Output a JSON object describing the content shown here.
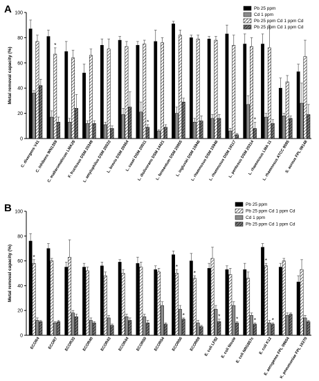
{
  "chart_data": [
    {
      "panel_label": "A",
      "type": "bar",
      "title": "",
      "xlabel": "",
      "ylabel": "Metal removal capacity (%)",
      "ylim": [
        0,
        100
      ],
      "yticks": [
        0,
        20,
        40,
        60,
        80,
        100
      ],
      "grid": false,
      "legend_position": "top-right",
      "series": [
        {
          "name": "Pb 25 ppm",
          "fill": "black",
          "values": [
            87,
            81,
            69,
            52,
            74,
            78,
            74,
            77,
            91,
            80,
            79,
            83,
            75,
            75,
            40,
            53
          ]
        },
        {
          "name": "Cd 1 ppm",
          "fill": "grey",
          "values": [
            36,
            17,
            13,
            12,
            11,
            19,
            21,
            6,
            20,
            13,
            16,
            6,
            27,
            17,
            18,
            28
          ]
        },
        {
          "name": "Pb 25 ppm Cd 1 ppm Cd",
          "fill": "hatch",
          "values": [
            77,
            67,
            64,
            66,
            71,
            73,
            75,
            76,
            82,
            79,
            78,
            74,
            73,
            72,
            45,
            65
          ]
        },
        {
          "name": "Pb 25 ppm Cd 1 ppm Cd",
          "fill": "darkhatch",
          "values": [
            42,
            13,
            24,
            12,
            8,
            25,
            9,
            9,
            29,
            14,
            16,
            3,
            8,
            12,
            16,
            19
          ]
        }
      ],
      "errors": [
        [
          7,
          5,
          8,
          7,
          5,
          3,
          3,
          9,
          2,
          2,
          2,
          7,
          8,
          8,
          8,
          6
        ],
        [
          2,
          5,
          3,
          2,
          2,
          5,
          8,
          1,
          5,
          3,
          3,
          2,
          7,
          3,
          2,
          16
        ],
        [
          5,
          5,
          6,
          5,
          8,
          4,
          3,
          4,
          4,
          3,
          3,
          8,
          7,
          18,
          5,
          13
        ],
        [
          5,
          4,
          11,
          2,
          2,
          12,
          2,
          2,
          3,
          4,
          3,
          1,
          5,
          3,
          2,
          8
        ]
      ],
      "asterisks": [
        {
          "category": 1,
          "series": 2
        },
        {
          "category": 6,
          "series": 3
        },
        {
          "category": 12,
          "series": 3
        }
      ],
      "categories": [
        "C. divergens V41",
        "C. inhibens WN1359",
        "C. maltaromaticum LMA28",
        "F. fructosus DSM 20349",
        "L. amylophilus DSM 20533",
        "L. brevis DSM 20054",
        "L. casei DSM 20011",
        "L. diolivorans DSM 14421",
        "L. fermentum DSM 20055",
        "L. ingluviei DSM 15946",
        "L. rhamnosus DSM 15946",
        "L. rhamnosus DSM 19117",
        "L. pentosus DSM 20314",
        "L. rhamnosus LMA 11",
        "L. rhamnosus ATCC 9595",
        "S. aureus FPL 09148"
      ]
    },
    {
      "panel_label": "B",
      "type": "bar",
      "title": "",
      "xlabel": "",
      "ylabel": "Metal removal capacity (%)",
      "ylim": [
        0,
        100
      ],
      "yticks": [
        0,
        20,
        40,
        60,
        80,
        100
      ],
      "grid": false,
      "legend_position": "top-right",
      "series": [
        {
          "name": "Pb 25 ppm",
          "fill": "black",
          "values": [
            76,
            70,
            55,
            55,
            56,
            59,
            58,
            53,
            65,
            60,
            54,
            53,
            53,
            71,
            55,
            43
          ]
        },
        {
          "name": "Pb 25 ppm Cd 1 ppm Cd",
          "fill": "hatch",
          "values": [
            58,
            60,
            63,
            52,
            48,
            50,
            55,
            51,
            50,
            46,
            62,
            49,
            46,
            56,
            60,
            53
          ]
        },
        {
          "name": "Cd 1 ppm",
          "fill": "grey",
          "values": [
            12,
            10,
            18,
            12,
            14,
            15,
            15,
            24,
            21,
            10,
            21,
            24,
            16,
            10,
            16,
            14
          ]
        },
        {
          "name": "Pb 25 ppm Cd 1 ppm Cd",
          "fill": "darkhatch",
          "values": [
            11,
            11,
            15,
            10,
            8,
            12,
            10,
            9,
            13,
            7,
            11,
            10,
            9,
            9,
            17,
            11
          ]
        }
      ],
      "errors": [
        [
          6,
          4,
          4,
          3,
          3,
          2,
          5,
          3,
          3,
          6,
          4,
          3,
          5,
          3,
          3,
          5
        ],
        [
          3,
          2,
          14,
          3,
          3,
          3,
          4,
          3,
          3,
          2,
          9,
          5,
          5,
          2,
          2,
          8
        ],
        [
          2,
          1,
          2,
          2,
          2,
          2,
          2,
          3,
          3,
          2,
          3,
          3,
          2,
          2,
          2,
          2
        ],
        [
          1,
          1,
          2,
          1,
          1,
          2,
          2,
          1,
          1,
          1,
          2,
          1,
          1,
          1,
          1,
          1
        ]
      ],
      "asterisks": [
        {
          "category": 0,
          "series": 1
        },
        {
          "category": 8,
          "series": 1
        },
        {
          "category": 9,
          "series": 1
        },
        {
          "category": 13,
          "series": 1
        },
        {
          "category": 8,
          "series": 3
        },
        {
          "category": 10,
          "series": 3
        },
        {
          "category": 11,
          "series": 3
        },
        {
          "category": 12,
          "series": 3
        },
        {
          "category": 13,
          "series": 3
        }
      ],
      "categories": [
        "ECOR4",
        "ECOR7",
        "ECOR33",
        "ECOR40",
        "ECOR43",
        "ECOR44",
        "ECOR50",
        "ECOR54",
        "ECOR56",
        "ECOR69",
        "E. coli LF82",
        "E. coli Nissle",
        "E. coli NRG857c",
        "E. coli K12",
        "E. aerogenes FPL 09604",
        "K. pneumoniae FPL 10270"
      ]
    }
  ]
}
